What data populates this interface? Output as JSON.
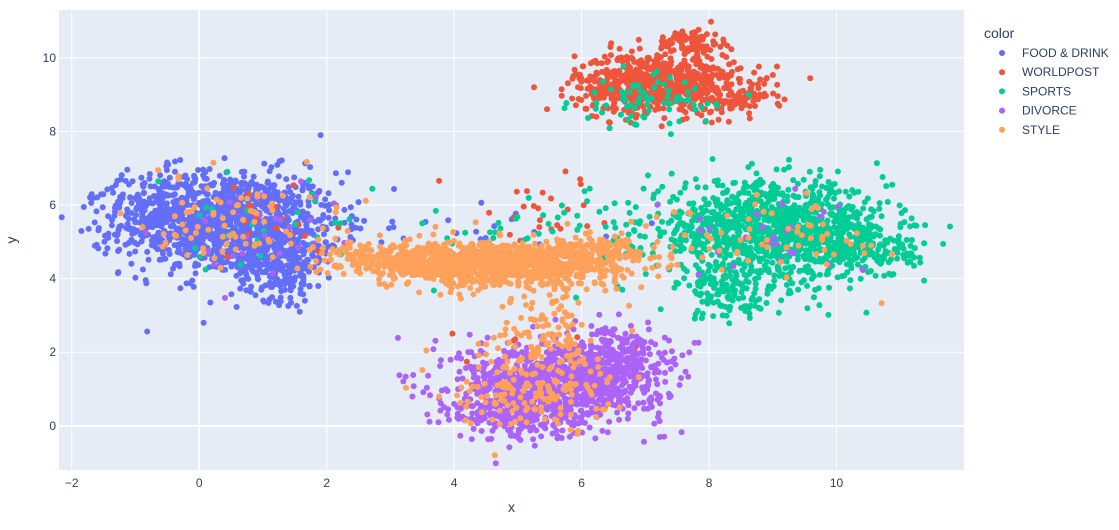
{
  "chart_data": {
    "type": "scatter",
    "xlabel": "x",
    "ylabel": "y",
    "xlim": [
      -2.2,
      12.0
    ],
    "ylim": [
      -1.2,
      11.3
    ],
    "x_ticks": [
      -2,
      0,
      2,
      4,
      6,
      8,
      10
    ],
    "y_ticks": [
      0,
      2,
      4,
      6,
      8,
      10
    ],
    "grid": true,
    "plot_background": "#E5ECF6",
    "grid_color": "#FFFFFF",
    "legend": {
      "title": "color",
      "placement": "top-right outside"
    },
    "series": [
      {
        "name": "FOOD & DRINK",
        "color": "#636EFA",
        "clusters": [
          {
            "cx": 0.5,
            "cy": 5.5,
            "sx": 0.85,
            "sy": 0.7,
            "n": 1100
          },
          {
            "cx": 1.3,
            "cy": 4.3,
            "sx": 0.35,
            "sy": 0.45,
            "n": 200
          },
          {
            "cx": -0.6,
            "cy": 5.9,
            "sx": 0.5,
            "sy": 0.5,
            "n": 200
          },
          {
            "cx": 4.8,
            "cy": 5.4,
            "sx": 1.0,
            "sy": 0.3,
            "n": 18
          }
        ]
      },
      {
        "name": "WORLDPOST",
        "color": "#EF553B",
        "clusters": [
          {
            "cx": 7.2,
            "cy": 9.3,
            "sx": 0.65,
            "sy": 0.4,
            "n": 700
          },
          {
            "cx": 7.7,
            "cy": 10.4,
            "sx": 0.25,
            "sy": 0.2,
            "n": 90
          },
          {
            "cx": 8.5,
            "cy": 8.9,
            "sx": 0.3,
            "sy": 0.25,
            "n": 60
          },
          {
            "cx": 1.0,
            "cy": 5.7,
            "sx": 0.8,
            "sy": 0.6,
            "n": 20
          },
          {
            "cx": 5.5,
            "cy": 5.7,
            "sx": 0.8,
            "sy": 0.6,
            "n": 25
          },
          {
            "cx": 5.2,
            "cy": 1.8,
            "sx": 0.7,
            "sy": 0.6,
            "n": 15
          }
        ]
      },
      {
        "name": "SPORTS",
        "color": "#00CC96",
        "clusters": [
          {
            "cx": 8.9,
            "cy": 5.3,
            "sx": 0.95,
            "sy": 0.65,
            "n": 1100
          },
          {
            "cx": 10.3,
            "cy": 4.8,
            "sx": 0.45,
            "sy": 0.4,
            "n": 200
          },
          {
            "cx": 8.3,
            "cy": 3.6,
            "sx": 0.4,
            "sy": 0.35,
            "n": 120
          },
          {
            "cx": 7.0,
            "cy": 8.8,
            "sx": 0.55,
            "sy": 0.35,
            "n": 70
          },
          {
            "cx": 1.0,
            "cy": 5.2,
            "sx": 0.9,
            "sy": 0.7,
            "n": 30
          },
          {
            "cx": 5.2,
            "cy": 5.2,
            "sx": 1.2,
            "sy": 0.6,
            "n": 40
          }
        ]
      },
      {
        "name": "DIVORCE",
        "color": "#AB63FA",
        "clusters": [
          {
            "cx": 5.7,
            "cy": 1.2,
            "sx": 0.8,
            "sy": 0.55,
            "n": 950
          },
          {
            "cx": 5.0,
            "cy": 0.4,
            "sx": 0.5,
            "sy": 0.4,
            "n": 250
          },
          {
            "cx": 6.5,
            "cy": 2.0,
            "sx": 0.45,
            "sy": 0.35,
            "n": 150
          },
          {
            "cx": 9.0,
            "cy": 5.0,
            "sx": 0.9,
            "sy": 0.7,
            "n": 25
          },
          {
            "cx": 1.0,
            "cy": 5.3,
            "sx": 0.8,
            "sy": 0.6,
            "n": 25
          }
        ]
      },
      {
        "name": "STYLE",
        "color": "#FFA15A",
        "clusters": [
          {
            "cx": 4.7,
            "cy": 4.4,
            "sx": 0.85,
            "sy": 0.3,
            "n": 1000
          },
          {
            "cx": 3.0,
            "cy": 4.5,
            "sx": 0.55,
            "sy": 0.25,
            "n": 220
          },
          {
            "cx": 6.2,
            "cy": 4.6,
            "sx": 0.5,
            "sy": 0.3,
            "n": 180
          },
          {
            "cx": 5.5,
            "cy": 2.5,
            "sx": 0.4,
            "sy": 0.7,
            "n": 120
          },
          {
            "cx": 5.2,
            "cy": 1.0,
            "sx": 0.6,
            "sy": 0.55,
            "n": 150
          },
          {
            "cx": 0.6,
            "cy": 5.6,
            "sx": 0.8,
            "sy": 0.6,
            "n": 80
          },
          {
            "cx": 9.0,
            "cy": 5.2,
            "sx": 0.9,
            "sy": 0.6,
            "n": 60
          }
        ]
      }
    ]
  }
}
